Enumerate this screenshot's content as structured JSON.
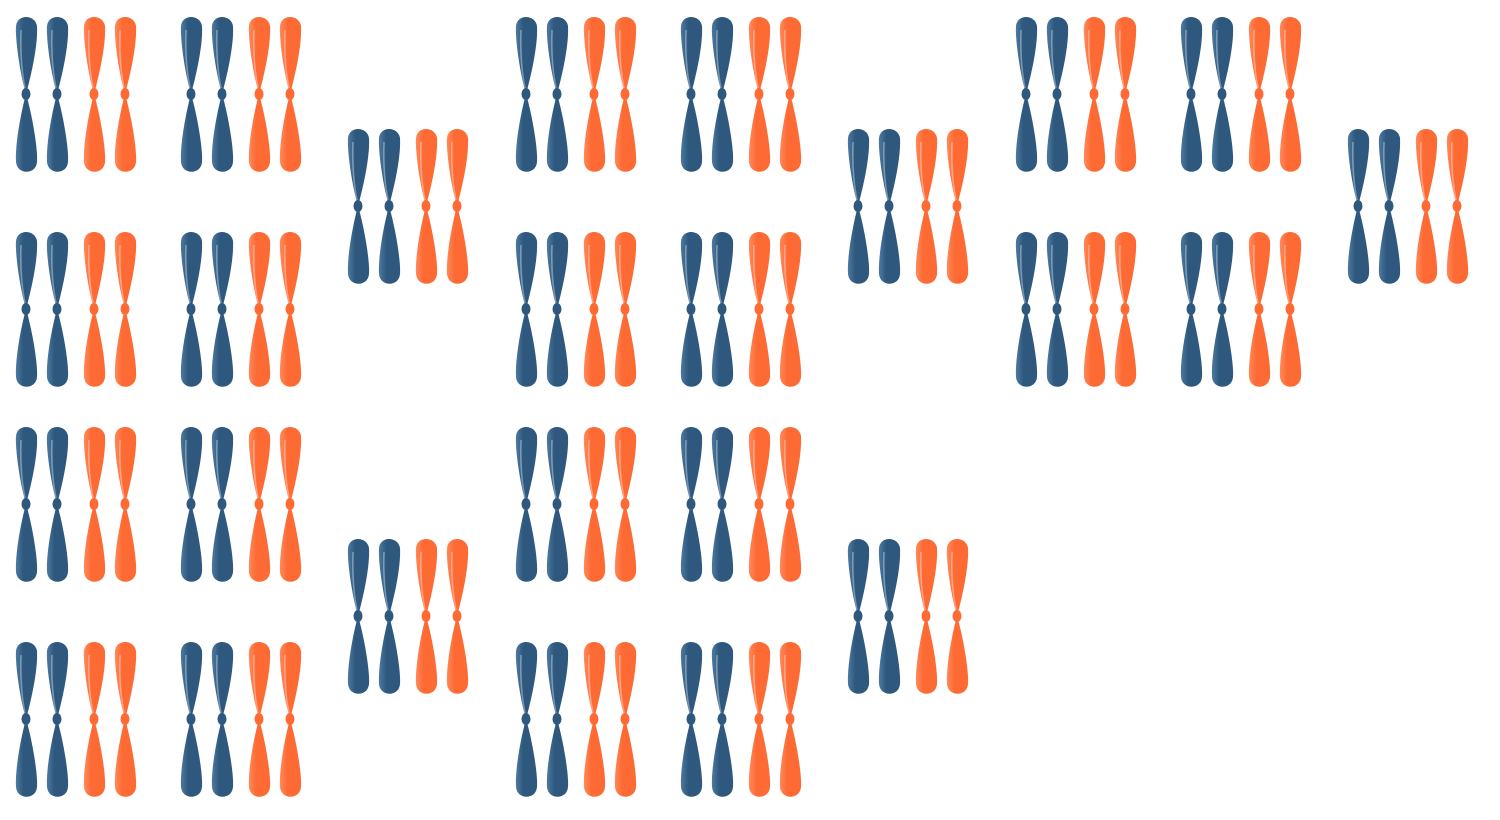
{
  "image": {
    "background": "#ffffff",
    "subject": "propeller-sets",
    "colors": {
      "blue": "#2e587d",
      "blue_light": "#4f7aa0",
      "orange": "#fd6a34",
      "orange_light": "#ff8a5c"
    },
    "set_composition": [
      "blue",
      "blue",
      "orange",
      "orange"
    ],
    "groups": [
      {
        "name": "group-1",
        "set_count": 10
      },
      {
        "name": "group-2",
        "set_count": 10
      },
      {
        "name": "group-3",
        "set_count": 5
      }
    ]
  }
}
